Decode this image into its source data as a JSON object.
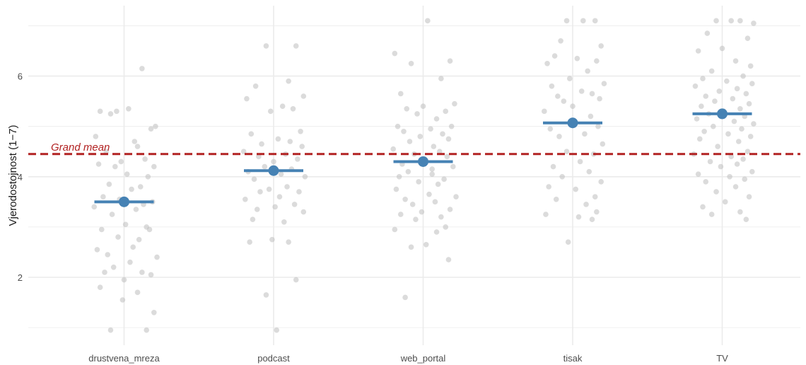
{
  "chart_data": {
    "type": "scatter",
    "title": "",
    "xlabel": "",
    "ylabel": "Vjerodostojnost (1−7)",
    "categories": [
      "drustvena_mreza",
      "podcast",
      "web_portal",
      "tisak",
      "TV"
    ],
    "ylim": [
      0.65,
      7.4
    ],
    "y_ticks": [
      2,
      4,
      6
    ],
    "grid": true,
    "grand_mean": 4.45,
    "annotation": "Grand mean",
    "colors": {
      "points": "#bdbdbd",
      "mean": "#4682b4",
      "grand_mean_line": "#b22222",
      "grid": "#ebebeb"
    },
    "means": [
      {
        "category": "drustvena_mreza",
        "value": 3.5
      },
      {
        "category": "podcast",
        "value": 4.12
      },
      {
        "category": "web_portal",
        "value": 4.3
      },
      {
        "category": "tisak",
        "value": 5.07
      },
      {
        "category": "TV",
        "value": 5.25
      }
    ],
    "points": [
      {
        "category": "drustvena_mreza",
        "jitter": [
          -0.16,
          0.12,
          -0.05,
          0.21,
          -0.09,
          0.03,
          0.18,
          -0.19,
          0.07,
          -0.02,
          0.14,
          -0.12,
          0.09,
          -0.17,
          0.2,
          -0.06,
          0.02,
          0.16,
          -0.1,
          0.11,
          -0.14,
          0.05,
          0.19,
          -0.03,
          0.13,
          -0.2,
          0.08,
          -0.08,
          0.15,
          0.01,
          -0.15,
          0.17,
          -0.04,
          0.1,
          -0.18,
          0.06,
          0.22,
          -0.11,
          0.04,
          -0.07,
          0.12,
          -0.13,
          0.18,
          0.0,
          -0.16,
          0.09,
          -0.01,
          0.2,
          -0.09,
          0.15
        ],
        "values": [
          5.3,
          6.15,
          5.3,
          5.0,
          5.25,
          5.35,
          4.95,
          4.8,
          4.7,
          4.3,
          4.35,
          4.5,
          4.6,
          4.25,
          4.2,
          4.2,
          4.05,
          4.0,
          3.85,
          3.8,
          3.6,
          3.75,
          3.5,
          3.55,
          3.45,
          3.4,
          3.35,
          3.25,
          3.0,
          3.05,
          2.95,
          2.95,
          2.8,
          2.75,
          2.55,
          2.6,
          2.4,
          2.45,
          2.3,
          2.2,
          2.1,
          2.1,
          2.05,
          1.95,
          1.8,
          1.7,
          1.55,
          1.3,
          0.95,
          0.95
        ]
      },
      {
        "category": "podcast",
        "jitter": [
          -0.05,
          0.15,
          0.1,
          -0.12,
          0.2,
          -0.18,
          0.06,
          0.13,
          -0.02,
          0.18,
          -0.15,
          0.03,
          0.11,
          -0.08,
          0.19,
          -0.2,
          0.08,
          -0.1,
          0.16,
          0.0,
          -0.06,
          0.12,
          -0.17,
          0.05,
          0.21,
          -0.13,
          0.09,
          -0.03,
          0.17,
          -0.09,
          0.04,
          -0.19,
          0.14,
          0.01,
          -0.11,
          0.2,
          -0.14,
          0.07,
          -0.01,
          0.1,
          -0.16,
          0.15,
          -0.05,
          0.02
        ],
        "values": [
          6.6,
          6.6,
          5.9,
          5.8,
          5.6,
          5.55,
          5.4,
          5.35,
          5.3,
          4.9,
          4.85,
          4.75,
          4.7,
          4.65,
          4.6,
          4.5,
          4.45,
          4.4,
          4.35,
          4.3,
          4.2,
          4.15,
          4.1,
          4.05,
          4.0,
          3.95,
          3.8,
          3.75,
          3.7,
          3.7,
          3.6,
          3.55,
          3.45,
          3.4,
          3.35,
          3.3,
          3.15,
          3.1,
          2.75,
          2.7,
          2.7,
          1.95,
          1.65,
          0.95
        ]
      },
      {
        "category": "web_portal",
        "jitter": [
          0.03,
          -0.19,
          0.18,
          -0.08,
          0.12,
          -0.15,
          0.21,
          0.0,
          -0.11,
          0.15,
          -0.04,
          0.09,
          -0.17,
          0.19,
          0.05,
          -0.13,
          0.13,
          -0.02,
          0.17,
          -0.09,
          0.07,
          -0.2,
          0.11,
          -0.06,
          0.16,
          0.01,
          -0.14,
          0.2,
          -0.1,
          0.06,
          -0.16,
          0.14,
          -0.03,
          0.1,
          -0.18,
          0.04,
          0.22,
          -0.12,
          0.08,
          -0.07,
          0.18,
          -0.01,
          -0.15,
          0.12,
          -0.05,
          0.15,
          -0.19,
          0.09,
          0.02,
          -0.08,
          0.17,
          -0.12,
          0.06
        ],
        "values": [
          7.1,
          6.45,
          6.3,
          6.25,
          5.95,
          5.65,
          5.45,
          5.4,
          5.35,
          5.3,
          5.25,
          5.15,
          5.0,
          5.0,
          4.95,
          4.9,
          4.85,
          4.8,
          4.75,
          4.7,
          4.6,
          4.55,
          4.5,
          4.45,
          4.4,
          4.35,
          4.25,
          4.2,
          4.1,
          4.05,
          4.0,
          3.95,
          3.9,
          3.85,
          3.75,
          3.65,
          3.6,
          3.55,
          3.5,
          3.45,
          3.35,
          3.3,
          3.25,
          3.2,
          3.15,
          3.0,
          2.95,
          2.9,
          2.65,
          2.6,
          2.35,
          1.6,
          4.15
        ]
      },
      {
        "category": "tisak",
        "jitter": [
          -0.04,
          0.07,
          0.15,
          -0.08,
          0.19,
          -0.12,
          0.03,
          0.16,
          -0.17,
          0.1,
          -0.02,
          0.21,
          -0.14,
          0.06,
          0.13,
          -0.1,
          0.18,
          -0.06,
          0.0,
          -0.19,
          0.12,
          -0.01,
          0.17,
          -0.15,
          0.08,
          -0.09,
          0.2,
          -0.04,
          0.14,
          0.05,
          -0.13,
          0.11,
          -0.07,
          0.19,
          -0.16,
          0.02,
          0.15,
          -0.11,
          0.09,
          -0.18,
          0.04,
          0.13,
          -0.03,
          0.16
        ],
        "values": [
          7.1,
          7.1,
          7.1,
          6.7,
          6.6,
          6.4,
          6.35,
          6.3,
          6.25,
          6.1,
          5.95,
          5.85,
          5.8,
          5.7,
          5.65,
          5.6,
          5.55,
          5.5,
          5.4,
          5.3,
          5.2,
          5.1,
          5.0,
          4.95,
          4.85,
          4.8,
          4.65,
          4.5,
          4.45,
          4.3,
          4.2,
          4.1,
          4.0,
          3.9,
          3.8,
          3.75,
          3.6,
          3.55,
          3.45,
          3.25,
          3.2,
          3.15,
          2.7,
          3.3
        ]
      },
      {
        "category": "TV",
        "jitter": [
          -0.04,
          0.12,
          0.06,
          0.21,
          -0.1,
          0.17,
          0.0,
          -0.16,
          0.09,
          0.19,
          -0.07,
          0.14,
          -0.13,
          0.03,
          0.2,
          -0.18,
          0.1,
          -0.02,
          0.16,
          -0.11,
          0.07,
          -0.05,
          0.18,
          -0.14,
          0.12,
          0.01,
          -0.09,
          0.15,
          -0.17,
          0.08,
          0.21,
          -0.06,
          0.13,
          -0.12,
          0.04,
          0.19,
          -0.15,
          0.11,
          -0.03,
          0.17,
          -0.19,
          0.06,
          0.14,
          -0.08,
          0.1,
          -0.01,
          0.2,
          -0.16,
          0.05,
          0.15,
          -0.11,
          0.09,
          -0.04,
          0.18,
          0.02,
          -0.13,
          0.12,
          -0.07,
          0.16
        ],
        "values": [
          7.1,
          7.1,
          7.1,
          7.05,
          6.85,
          6.75,
          6.55,
          6.5,
          6.3,
          6.2,
          6.1,
          6.0,
          5.95,
          5.9,
          5.85,
          5.8,
          5.75,
          5.7,
          5.65,
          5.6,
          5.55,
          5.5,
          5.45,
          5.4,
          5.35,
          5.3,
          5.25,
          5.2,
          5.15,
          5.1,
          5.05,
          5.0,
          4.95,
          4.9,
          4.85,
          4.8,
          4.75,
          4.7,
          4.6,
          4.5,
          4.45,
          4.4,
          4.35,
          4.3,
          4.25,
          4.2,
          4.1,
          4.05,
          4.0,
          3.95,
          3.9,
          3.8,
          3.7,
          3.6,
          3.5,
          3.4,
          3.3,
          3.25,
          3.15
        ]
      }
    ]
  }
}
